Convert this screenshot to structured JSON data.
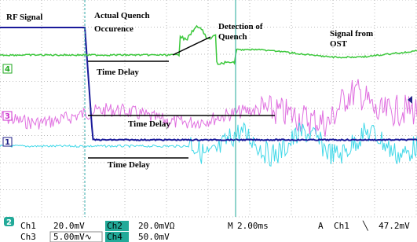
{
  "annotations": {
    "rf_signal": "RF Signal",
    "actual_quench": [
      "Actual Quench",
      "Occurence"
    ],
    "detection": [
      "Detection of",
      "Quench"
    ],
    "signal_from": [
      "Signal from",
      "OST"
    ],
    "time_delays": [
      "Time Delay",
      "Time Delay",
      "Time Delay"
    ]
  },
  "channel_markers": [
    "4",
    "3",
    "1",
    "2"
  ],
  "status": {
    "row1": {
      "ch1": "Ch1",
      "ch1_scale": "20.0mV",
      "ch2": "Ch2",
      "ch2_scale": "20.0mVΩ",
      "m": "M",
      "timebase": "2.00ms",
      "a": "A",
      "trig_ch": "Ch1",
      "trig_slope": "╲",
      "trig_level": "47.2mV"
    },
    "row2": {
      "ch3": "Ch3",
      "ch3_scale": "5.00mV∿",
      "ch4": "Ch4",
      "ch4_scale": "50.0mV"
    }
  }
}
